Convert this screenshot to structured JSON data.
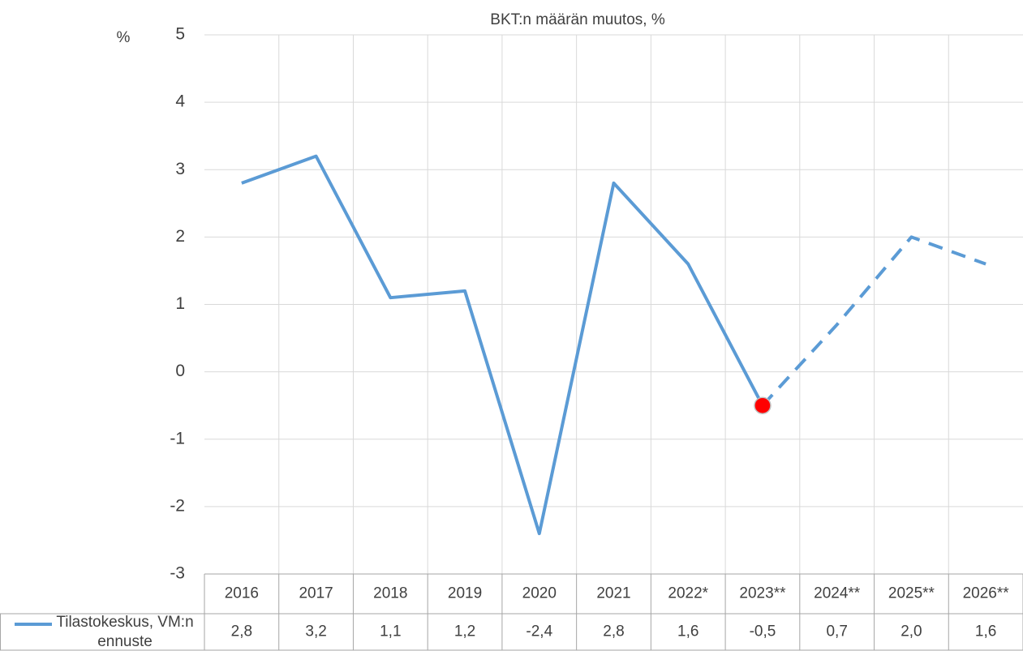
{
  "chart_data": {
    "type": "line",
    "title": "BKT:n määrän muutos, %",
    "y_label": "%",
    "categories": [
      "2016",
      "2017",
      "2018",
      "2019",
      "2020",
      "2021",
      "2022*",
      "2023**",
      "2024**",
      "2025**",
      "2026**"
    ],
    "series": [
      {
        "name": "Tilastokeskus, VM:n ennuste",
        "color": "#5b9bd5",
        "values": [
          2.8,
          3.2,
          1.1,
          1.2,
          -2.4,
          2.8,
          1.6,
          -0.5,
          0.7,
          2.0,
          1.6
        ],
        "value_labels": [
          "2,8",
          "3,2",
          "1,1",
          "1,2",
          "-2,4",
          "2,8",
          "1,6",
          "-0,5",
          "0,7",
          "2,0",
          "1,6"
        ],
        "dashed_from": 7,
        "highlight": 7,
        "highlight_color": "#ff0000"
      }
    ],
    "ylim": [
      -3,
      5
    ],
    "yticks": [
      -3,
      -2,
      -1,
      0,
      1,
      2,
      3,
      4,
      5
    ],
    "grid": true,
    "data_table": true
  }
}
